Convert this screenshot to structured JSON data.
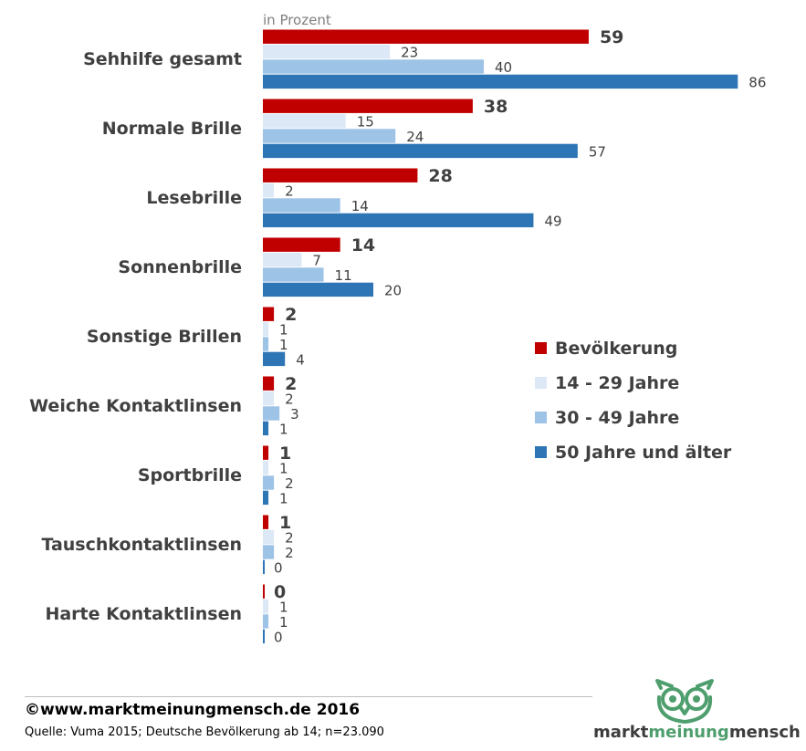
{
  "chart_data": {
    "type": "bar",
    "orientation": "horizontal",
    "unit_label": "in Prozent",
    "categories": [
      "Sehhilfe gesamt",
      "Normale Brille",
      "Lesebrille",
      "Sonnenbrille",
      "Sonstige Brillen",
      "Weiche Kontaktlinsen",
      "Sportbrille",
      "Tauschkontaktlinsen",
      "Harte Kontaktlinsen"
    ],
    "series": [
      {
        "name": "Bevölkerung",
        "color": "#c00000",
        "values": [
          59,
          38,
          28,
          14,
          2,
          2,
          1,
          1,
          0
        ]
      },
      {
        "name": "14 - 29 Jahre",
        "color": "#dde8f6",
        "values": [
          23,
          15,
          2,
          7,
          1,
          2,
          1,
          2,
          1
        ]
      },
      {
        "name": "30 - 49 Jahre",
        "color": "#9dc3e6",
        "values": [
          40,
          24,
          14,
          11,
          1,
          3,
          2,
          2,
          1
        ]
      },
      {
        "name": "50 Jahre und älter",
        "color": "#2e75b6",
        "values": [
          86,
          57,
          49,
          20,
          4,
          1,
          1,
          0,
          0
        ]
      }
    ],
    "xlim": [
      0,
      100
    ],
    "legend_position": "right",
    "grid": false
  },
  "footer": {
    "copyright": "©www.marktmeinungmensch.de 2016",
    "source": "Quelle: Vuma 2015; Deutsche Bevölkerung ab 14; n=23.090"
  },
  "logo": {
    "part1": "markt",
    "part2": "meinung",
    "part3": "mensch",
    "icon": "owl-icon"
  }
}
